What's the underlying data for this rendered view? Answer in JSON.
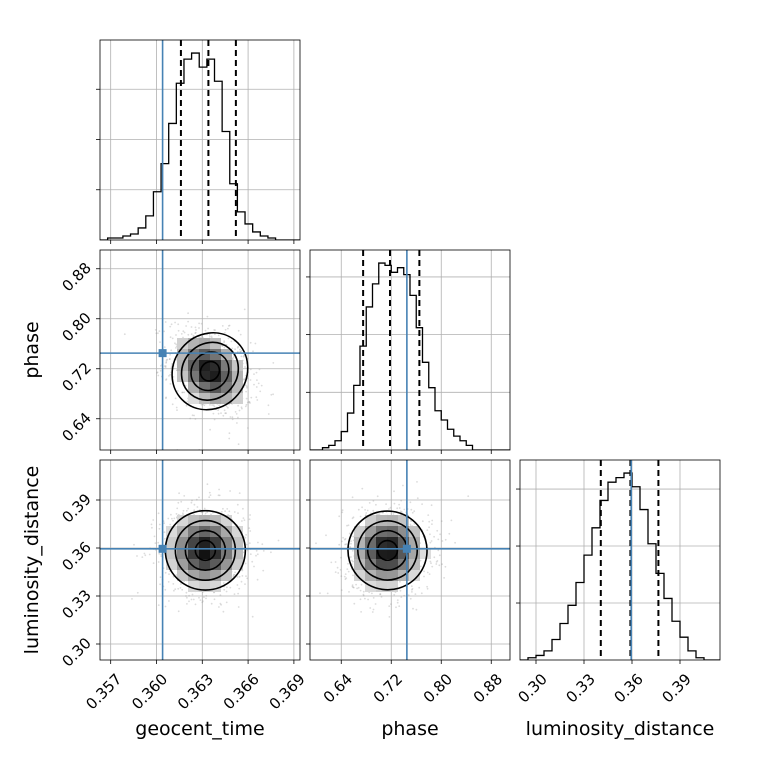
{
  "chart_data": {
    "type": "corner",
    "parameters": [
      "geocent_time",
      "phase",
      "luminosity_distance"
    ],
    "truths": {
      "geocent_time": 0.3604,
      "phase": 0.745,
      "luminosity_distance": 0.3595
    },
    "axes": {
      "geocent_time": {
        "lim": [
          0.3563,
          0.3694
        ],
        "ticks": [
          0.357,
          0.36,
          0.363,
          0.366,
          0.369
        ],
        "tick_labels": [
          "0.357",
          "0.360",
          "0.363",
          "0.366",
          "0.369"
        ]
      },
      "phase": {
        "lim": [
          0.59,
          0.91
        ],
        "ticks": [
          0.64,
          0.72,
          0.8,
          0.88
        ],
        "tick_labels": [
          "0.64",
          "0.72",
          "0.80",
          "0.88"
        ]
      },
      "luminosity_distance": {
        "lim": [
          0.29,
          0.415
        ],
        "ticks": [
          0.3,
          0.33,
          0.36,
          0.39
        ],
        "tick_labels": [
          "0.30",
          "0.33",
          "0.36",
          "0.39"
        ]
      }
    },
    "histograms": {
      "geocent_time": {
        "edges": [
          0.3563,
          0.3568,
          0.3573,
          0.3578,
          0.3583,
          0.3588,
          0.3593,
          0.3598,
          0.3603,
          0.3608,
          0.3613,
          0.3618,
          0.3623,
          0.3628,
          0.3633,
          0.3638,
          0.3643,
          0.3648,
          0.3653,
          0.3658,
          0.3663,
          0.3668,
          0.3673,
          0.3678,
          0.3683,
          0.3688,
          0.3694
        ],
        "counts": [
          0,
          1,
          1,
          2,
          3,
          6,
          12,
          24,
          38,
          58,
          78,
          90,
          93,
          86,
          90,
          79,
          54,
          28,
          14,
          8,
          4,
          2,
          1,
          0,
          0,
          0
        ],
        "quantiles": [
          0.3616,
          0.3634,
          0.3652
        ]
      },
      "phase": {
        "edges": [
          0.59,
          0.6,
          0.61,
          0.62,
          0.63,
          0.64,
          0.65,
          0.66,
          0.67,
          0.68,
          0.69,
          0.7,
          0.71,
          0.72,
          0.73,
          0.74,
          0.75,
          0.76,
          0.77,
          0.78,
          0.79,
          0.8,
          0.81,
          0.82,
          0.83,
          0.84,
          0.85,
          0.86,
          0.87,
          0.88,
          0.89,
          0.9,
          0.91
        ],
        "counts": [
          0,
          0,
          1,
          2,
          4,
          8,
          16,
          28,
          45,
          62,
          72,
          81,
          80,
          77,
          79,
          76,
          67,
          53,
          38,
          27,
          17,
          13,
          9,
          6,
          4,
          2,
          0,
          0,
          0,
          0,
          0,
          0
        ],
        "quantiles": [
          0.675,
          0.718,
          0.765
        ]
      },
      "luminosity_distance": {
        "edges": [
          0.29,
          0.295,
          0.3,
          0.305,
          0.31,
          0.315,
          0.32,
          0.325,
          0.33,
          0.335,
          0.34,
          0.345,
          0.35,
          0.355,
          0.36,
          0.365,
          0.37,
          0.375,
          0.38,
          0.385,
          0.39,
          0.395,
          0.4,
          0.405,
          0.41,
          0.415
        ],
        "counts": [
          0,
          1,
          2,
          4,
          9,
          16,
          24,
          34,
          46,
          58,
          70,
          78,
          80,
          82,
          76,
          66,
          51,
          38,
          27,
          17,
          10,
          4,
          1,
          0,
          0
        ],
        "quantiles": [
          0.3405,
          0.359,
          0.3765
        ]
      }
    },
    "joint_2d": [
      {
        "x": "geocent_time",
        "y": "phase",
        "center": [
          0.3635,
          0.716
        ],
        "spread": [
          0.0012,
          0.031
        ],
        "rho": -0.3,
        "contour_levels_sigma": [
          0.5,
          1.0,
          1.5,
          2.0
        ]
      },
      {
        "x": "geocent_time",
        "y": "luminosity_distance",
        "center": [
          0.3632,
          0.3585
        ],
        "spread": [
          0.0013,
          0.0125
        ],
        "rho": 0.0,
        "contour_levels_sigma": [
          0.5,
          1.0,
          1.5,
          2.0
        ]
      },
      {
        "x": "phase",
        "y": "luminosity_distance",
        "center": [
          0.714,
          0.3585
        ],
        "spread": [
          0.031,
          0.0125
        ],
        "rho": 0.05,
        "contour_levels_sigma": [
          0.5,
          1.0,
          1.5,
          2.0
        ]
      }
    ],
    "grid": true
  }
}
